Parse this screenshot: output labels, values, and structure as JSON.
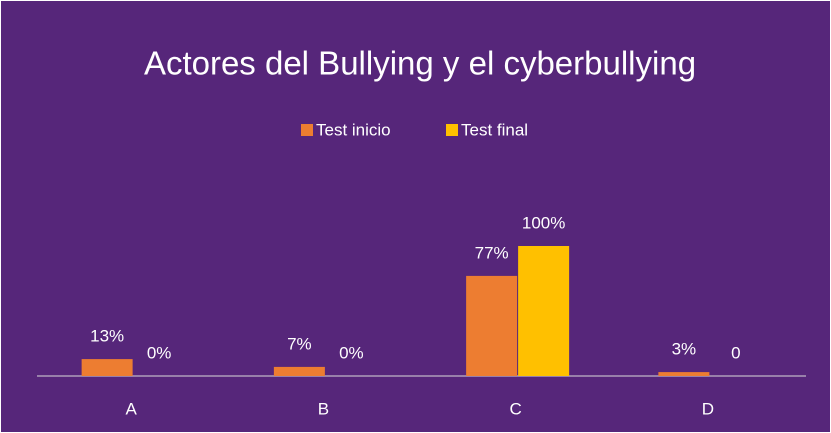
{
  "chart_data": {
    "type": "bar",
    "title": "Actores del Bullying y el cyberbullying",
    "categories": [
      "A",
      "B",
      "C",
      "D"
    ],
    "series": [
      {
        "name": "Test inicio",
        "color": "#ED7D31",
        "values": [
          13,
          7,
          77,
          3
        ],
        "value_labels": [
          "13%",
          "7%",
          "77%",
          "3%"
        ]
      },
      {
        "name": "Test final",
        "color": "#FFC000",
        "values": [
          0,
          0,
          100,
          0
        ],
        "value_labels": [
          "0%",
          "0%",
          "100%",
          "0"
        ]
      }
    ],
    "legend": "top"
  }
}
